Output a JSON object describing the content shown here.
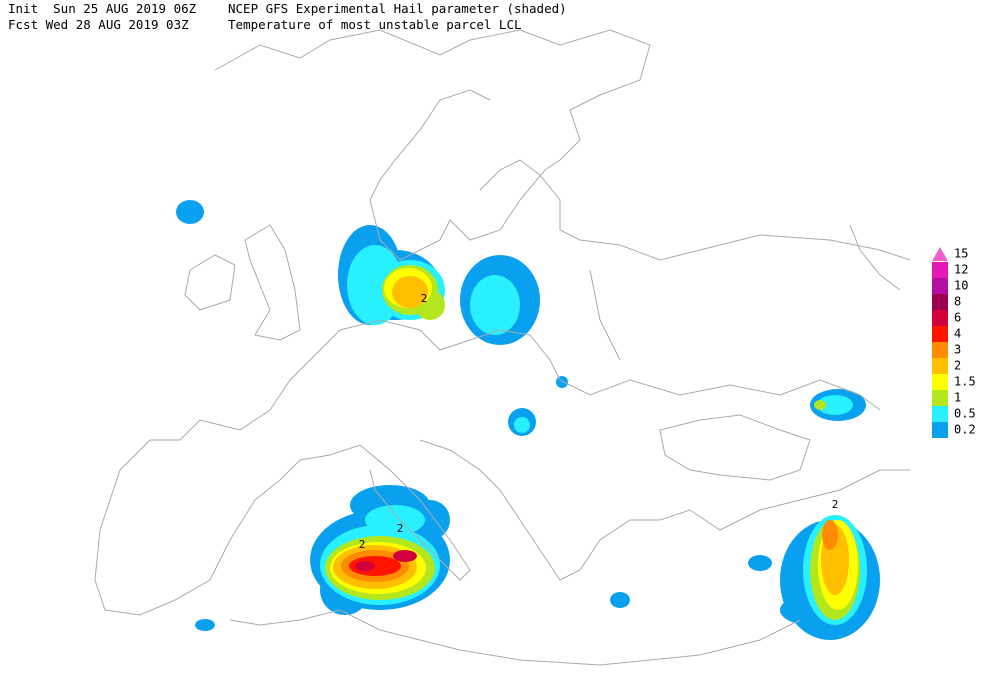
{
  "header": {
    "init": "Init  Sun 25 AUG 2019 06Z",
    "title": "NCEP GFS Experimental Hail parameter (shaded)",
    "forecast": "Fcst Wed 28 AUG 2019 03Z",
    "subtitle": "Temperature of most unstable parcel LCL"
  },
  "legend": {
    "entries": [
      {
        "label": 15,
        "color": "#f060c8"
      },
      {
        "label": 12,
        "color": "#e619b4"
      },
      {
        "label": 10,
        "color": "#b40fa0"
      },
      {
        "label": 8,
        "color": "#a00050"
      },
      {
        "label": 6,
        "color": "#d2003c"
      },
      {
        "label": 4,
        "color": "#ff1400"
      },
      {
        "label": 3,
        "color": "#ff8c00"
      },
      {
        "label": 2,
        "color": "#ffbe00"
      },
      {
        "label": 1.5,
        "color": "#ffff00"
      },
      {
        "label": 1,
        "color": "#b4e61e"
      },
      {
        "label": 0.5,
        "color": "#28f0ff"
      },
      {
        "label": 0.2,
        "color": "#0aa0f0"
      }
    ]
  },
  "contour_labels": [
    "2",
    "2",
    "2",
    "2"
  ]
}
